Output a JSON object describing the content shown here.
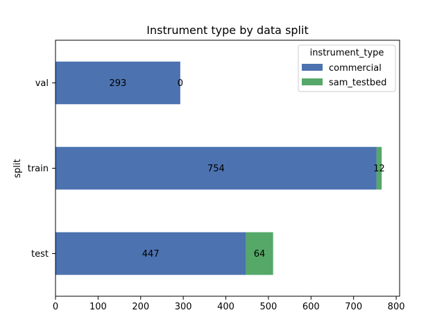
{
  "chart_data": {
    "type": "bar",
    "orientation": "horizontal",
    "stacked": true,
    "title": "Instrument type by data split",
    "xlabel": "",
    "ylabel": "split",
    "categories": [
      "test",
      "train",
      "val"
    ],
    "series": [
      {
        "name": "commercial",
        "values": [
          447,
          754,
          293
        ],
        "color": "#4c72b0"
      },
      {
        "name": "sam_testbed",
        "values": [
          64,
          12,
          0
        ],
        "color": "#55a868"
      }
    ],
    "data_labels": [
      [
        "447",
        "754",
        "293"
      ],
      [
        "64",
        "12",
        "0"
      ]
    ],
    "xlim": [
      0,
      808
    ],
    "xticks": [
      0,
      100,
      200,
      300,
      400,
      500,
      600,
      700,
      800
    ],
    "legend": {
      "title": "instrument_type",
      "placement": "top-right"
    },
    "grid": false
  }
}
